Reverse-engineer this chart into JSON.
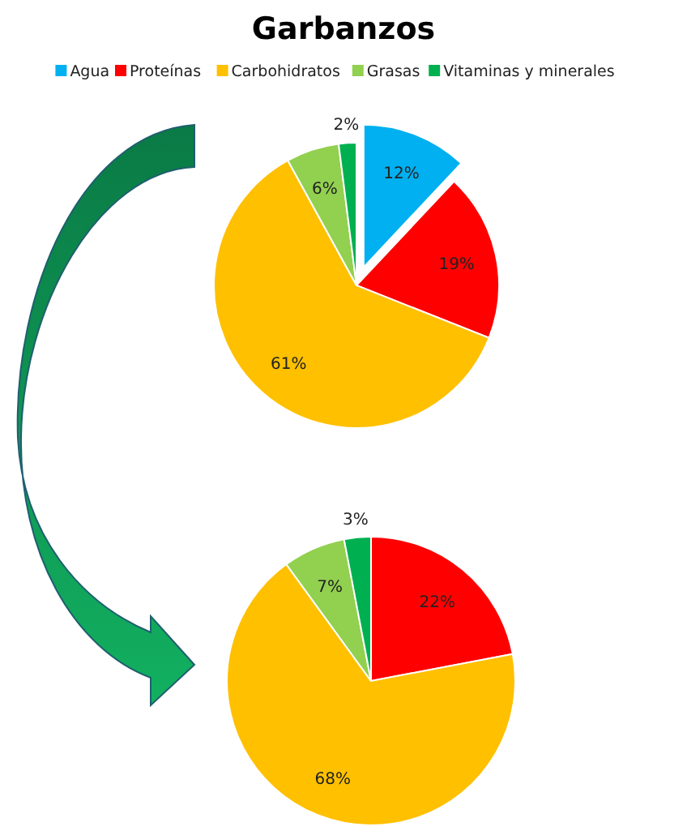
{
  "chart_data": [
    {
      "type": "pie",
      "title": "Garbanzos",
      "legend": "top",
      "data_labels": true,
      "categories": [
        "Agua",
        "Proteínas",
        "Carbohidratos",
        "Grasas",
        "Vitaminas y minerales"
      ],
      "values": [
        12,
        19,
        61,
        6,
        2
      ],
      "value_labels": [
        "12%",
        "19%",
        "61%",
        "6%",
        "2%"
      ],
      "colors": [
        "#00b0f0",
        "#ff0000",
        "#ffc000",
        "#92d050",
        "#00b050"
      ]
    },
    {
      "type": "pie",
      "legend": false,
      "data_labels": true,
      "categories": [
        null,
        null,
        null,
        null
      ],
      "values": [
        22,
        68,
        7,
        3
      ],
      "value_labels": [
        "22%",
        "68%",
        "7%",
        "3%"
      ],
      "colors": [
        "#ff0000",
        "#ffc000",
        "#92d050",
        "#00b050"
      ]
    }
  ]
}
